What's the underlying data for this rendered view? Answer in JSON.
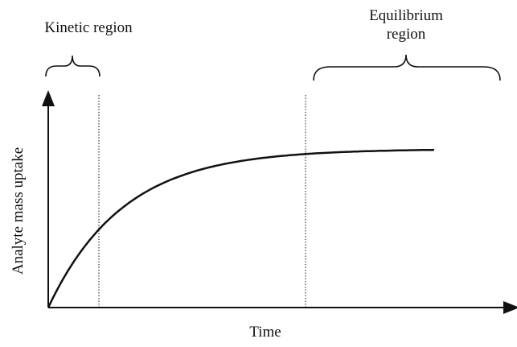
{
  "regions": {
    "kinetic": "Kinetic region",
    "equilibrium": [
      "Equilibrium",
      "region"
    ]
  },
  "axes": {
    "y_label": "Analyte mass uptake",
    "x_label": "Time"
  }
}
